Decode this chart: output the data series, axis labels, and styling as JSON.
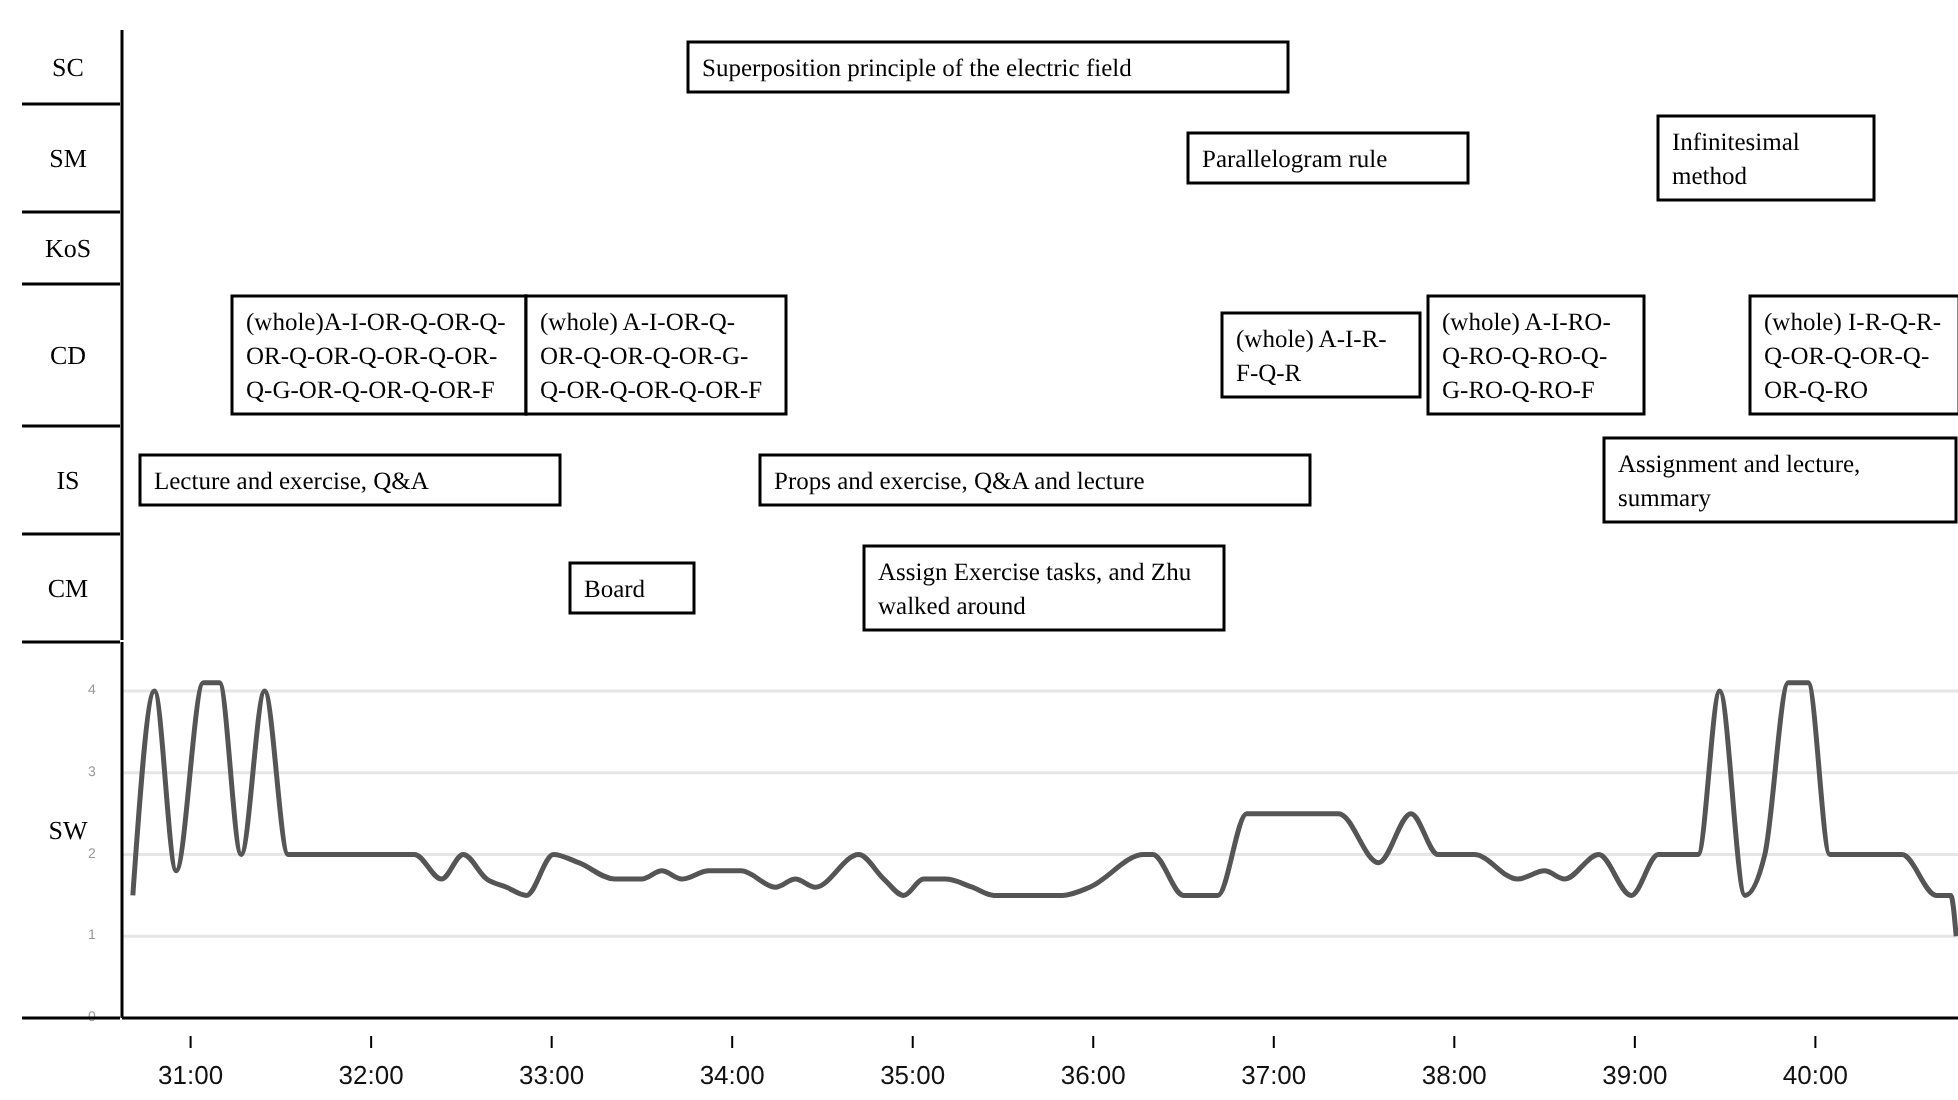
{
  "chart_data": {
    "type": "line",
    "ylabel": "SW",
    "xlim": [
      30.62,
      40.79
    ],
    "xticks": [
      {
        "value": 31,
        "label": "31:00"
      },
      {
        "value": 32,
        "label": "32:00"
      },
      {
        "value": 33,
        "label": "33:00"
      },
      {
        "value": 34,
        "label": "34:00"
      },
      {
        "value": 35,
        "label": "35:00"
      },
      {
        "value": 36,
        "label": "36:00"
      },
      {
        "value": 37,
        "label": "37:00"
      },
      {
        "value": 38,
        "label": "38:00"
      },
      {
        "value": 39,
        "label": "39:00"
      },
      {
        "value": 40,
        "label": "40:00"
      }
    ],
    "ylim": [
      0,
      4.6
    ],
    "yticks": [
      0,
      1,
      2,
      3,
      4
    ],
    "grid": "y",
    "series": [
      {
        "color": "#555555",
        "x": [
          30.68,
          30.8,
          30.92,
          31.07,
          31.16,
          31.28,
          31.41,
          31.54,
          32.24,
          32.39,
          32.51,
          32.64,
          32.75,
          32.86,
          33.01,
          33.15,
          33.35,
          33.5,
          33.61,
          33.72,
          33.87,
          34.05,
          34.24,
          34.35,
          34.46,
          34.7,
          34.84,
          34.95,
          35.06,
          35.18,
          35.33,
          35.45,
          35.54,
          35.83,
          35.98,
          36.28,
          36.33,
          36.5,
          36.69,
          36.85,
          36.95,
          37.36,
          37.58,
          37.76,
          37.91,
          38.11,
          38.35,
          38.5,
          38.61,
          38.8,
          38.98,
          39.13,
          39.35,
          39.47,
          39.61,
          39.72,
          39.85,
          39.96,
          40.08,
          40.18,
          40.48,
          40.67,
          40.75,
          40.78
        ],
        "values": [
          1.5,
          4,
          1.8,
          4.1,
          4.1,
          2,
          4,
          2,
          2,
          1.7,
          2,
          1.7,
          1.6,
          1.5,
          2,
          1.9,
          1.7,
          1.7,
          1.8,
          1.7,
          1.8,
          1.8,
          1.6,
          1.7,
          1.6,
          2,
          1.7,
          1.5,
          1.7,
          1.7,
          1.6,
          1.5,
          1.5,
          1.5,
          1.6,
          2,
          2,
          1.5,
          1.5,
          2.5,
          2.5,
          2.5,
          1.9,
          2.5,
          2,
          2,
          1.7,
          1.8,
          1.7,
          2,
          1.5,
          2,
          2,
          4,
          1.5,
          2,
          4.1,
          4.1,
          2,
          2,
          2,
          1.5,
          1.5,
          1
        ]
      }
    ],
    "annotations": [
      "SC",
      "SM",
      "KoS",
      "CD",
      "IS",
      "CM",
      "Superposition principle of the electric field",
      "Parallelogram rule",
      "Infinitesimal method",
      "(whole)A-I-OR-Q-OR-Q-OR-Q-OR-Q-OR-Q-OR-Q-G-OR-Q-OR-Q-OR-F",
      "(whole) A-I-OR-Q-OR-Q-OR-Q-OR-G-Q-OR-Q-OR-Q-OR-F",
      "(whole) A-I-R-F-Q-R",
      "(whole) A-I-RO-Q-RO-Q-RO-Q-G-RO-Q-RO-F",
      "(whole) I-R-Q-R-Q-OR-Q-OR-Q-OR-Q-RO",
      "Lecture and exercise, Q&A",
      "Props and exercise, Q&A and lecture",
      "Assignment and lecture, summary",
      "Board",
      "Assign Exercise tasks, and Zhu walked around"
    ]
  }
}
